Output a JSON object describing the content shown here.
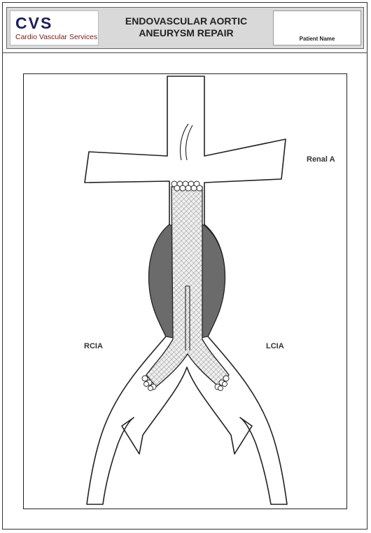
{
  "header": {
    "logo": {
      "abbr": "CVS",
      "name": "Cardio Vascular Services"
    },
    "title_line1": "ENDOVASCULAR AORTIC",
    "title_line2": "ANEURYSM REPAIR",
    "patient_label": "Patient Name"
  },
  "diagram": {
    "labels": {
      "renal": "Renal A",
      "right_iliac": "RCIA",
      "left_iliac": "LCIA"
    },
    "colors": {
      "aneurysm_sac": "#6b6b6b",
      "stent_graft": "#ececec",
      "vessel_outline": "#222222",
      "brand_dark": "#1c1f5a",
      "brand_red": "#7a1a1a"
    }
  }
}
